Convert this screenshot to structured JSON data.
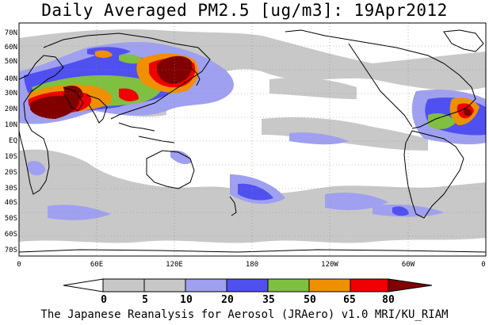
{
  "title": "Daily Averaged PM2.5 [ug/m3]: 19Apr2012",
  "footer": "The Japanese Reanalysis for Aerosol (JRAero) v1.0 MRI/KU_RIAM",
  "lat_labels": [
    "70N",
    "60N",
    "50N",
    "40N",
    "30N",
    "20N",
    "10N",
    "EQ",
    "10S",
    "20S",
    "30S",
    "40S",
    "50S",
    "60S",
    "70S"
  ],
  "lon_labels": [
    "0",
    "60E",
    "120E",
    "180",
    "120W",
    "60W",
    "0"
  ],
  "colorbar": {
    "thresholds": [
      "0",
      "5",
      "10",
      "20",
      "35",
      "50",
      "65",
      "80"
    ],
    "colors": [
      "#ffffff",
      "#c8c8c8",
      "#a0a0f0",
      "#5050f0",
      "#80c040",
      "#f09000",
      "#f00000",
      "#800000"
    ]
  }
}
